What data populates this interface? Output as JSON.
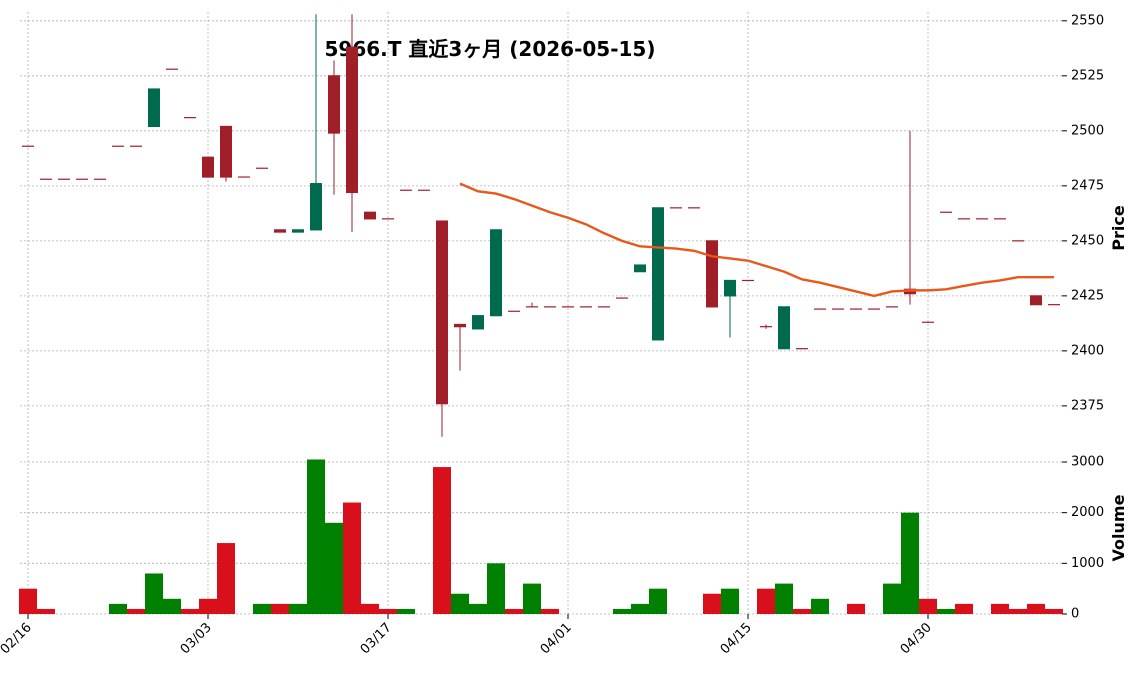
{
  "chart_data": {
    "type": "candlestick",
    "title": "5966.T  直近3ヶ月 (2026-05-15)",
    "categories": [
      "02/16",
      null,
      null,
      null,
      null,
      null,
      null,
      null,
      null,
      null,
      "03/03",
      null,
      null,
      null,
      null,
      null,
      null,
      null,
      null,
      null,
      "03/17",
      null,
      null,
      null,
      null,
      null,
      null,
      null,
      null,
      null,
      "04/01",
      null,
      null,
      null,
      null,
      null,
      null,
      null,
      null,
      null,
      "04/15",
      null,
      null,
      null,
      null,
      null,
      null,
      null,
      null,
      null,
      "04/30",
      null,
      null,
      null,
      null,
      null,
      null,
      null
    ],
    "open": [
      2493,
      2478,
      2478,
      2478,
      2478,
      2493,
      2493,
      2502,
      2528,
      2506,
      2488,
      2502,
      2479,
      2483,
      2455,
      2454,
      2455,
      2525,
      2538,
      2463,
      2460,
      2473,
      2473,
      2459,
      2412,
      2410,
      2416,
      2418,
      2420,
      2420,
      2420,
      2420,
      2420,
      2424,
      2436,
      2405,
      2465,
      2465,
      2450,
      2425,
      2432,
      2411,
      2401,
      2401,
      2419,
      2419,
      2419,
      2419,
      2420,
      2428,
      2413,
      2463,
      2460,
      2460,
      2460,
      2450,
      2425,
      2421
    ],
    "high": [
      2493,
      2478,
      2478,
      2478,
      2478,
      2493,
      2493,
      2519,
      2528,
      2506,
      2488,
      2502,
      2479,
      2483,
      2455,
      2455,
      2553,
      2532,
      2553,
      2463,
      2460,
      2473,
      2473,
      2459,
      2412,
      2416,
      2455,
      2418,
      2422,
      2420,
      2420,
      2420,
      2420,
      2424,
      2439,
      2465,
      2465,
      2465,
      2450,
      2432,
      2432,
      2412,
      2420,
      2401,
      2419,
      2419,
      2419,
      2419,
      2420,
      2500,
      2413,
      2463,
      2460,
      2460,
      2460,
      2450,
      2425,
      2421
    ],
    "low": [
      2493,
      2478,
      2478,
      2478,
      2478,
      2493,
      2493,
      2502,
      2528,
      2506,
      2479,
      2477,
      2479,
      2483,
      2454,
      2454,
      2455,
      2471,
      2454,
      2460,
      2460,
      2473,
      2473,
      2361,
      2391,
      2410,
      2416,
      2418,
      2420,
      2420,
      2420,
      2420,
      2420,
      2424,
      2436,
      2405,
      2465,
      2465,
      2420,
      2406,
      2432,
      2410,
      2401,
      2401,
      2419,
      2419,
      2419,
      2419,
      2420,
      2421,
      2413,
      2463,
      2460,
      2460,
      2460,
      2450,
      2421,
      2421
    ],
    "close": [
      2493,
      2478,
      2478,
      2478,
      2478,
      2493,
      2493,
      2519,
      2528,
      2506,
      2479,
      2479,
      2479,
      2483,
      2454,
      2455,
      2476,
      2499,
      2472,
      2460,
      2460,
      2473,
      2473,
      2376,
      2411,
      2416,
      2455,
      2418,
      2420,
      2420,
      2420,
      2420,
      2420,
      2424,
      2439,
      2465,
      2465,
      2465,
      2420,
      2432,
      2432,
      2411,
      2420,
      2401,
      2419,
      2419,
      2419,
      2419,
      2420,
      2426,
      2413,
      2463,
      2460,
      2460,
      2460,
      2450,
      2421,
      2421
    ],
    "up_color": "#006a4e",
    "down_color": "#a01e28",
    "ylabel": "Price",
    "ylim": [
      2359.5,
      2554
    ],
    "yticks": [
      2375,
      2400,
      2425,
      2450,
      2475,
      2500,
      2525,
      2550
    ],
    "grid": true,
    "moving_average": {
      "color": "#e8581c",
      "values": [
        null,
        null,
        null,
        null,
        null,
        null,
        null,
        null,
        null,
        null,
        null,
        null,
        null,
        null,
        null,
        null,
        null,
        null,
        null,
        null,
        null,
        null,
        null,
        null,
        2476,
        2472.5,
        2471.5,
        2469,
        2466,
        2463,
        2460.5,
        2457.5,
        2453.5,
        2450,
        2447.5,
        2447,
        2446.5,
        2445.5,
        2443,
        2442,
        2441,
        2438.5,
        2436,
        2432.5,
        2431,
        2429,
        2427,
        2425,
        2427,
        2427.5,
        2427.5,
        2428,
        2429.5,
        2431,
        2432,
        2433.5,
        2433.5,
        2433.5
      ]
    },
    "volume": {
      "ylabel": "Volume",
      "up_color": "#008000",
      "down_color": "#d8101c",
      "ylim": [
        0,
        3375
      ],
      "yticks": [
        0,
        1000,
        2000,
        3000
      ],
      "values": [
        500,
        100,
        0,
        0,
        0,
        200,
        100,
        800,
        300,
        100,
        300,
        1400,
        0,
        200,
        200,
        200,
        3050,
        1800,
        2200,
        200,
        100,
        100,
        0,
        2900,
        400,
        200,
        1000,
        100,
        600,
        100,
        0,
        0,
        0,
        100,
        200,
        500,
        0,
        0,
        400,
        500,
        0,
        500,
        600,
        100,
        300,
        0,
        200,
        0,
        600,
        2000,
        300,
        100,
        200,
        0,
        200,
        100,
        200,
        100
      ]
    }
  }
}
